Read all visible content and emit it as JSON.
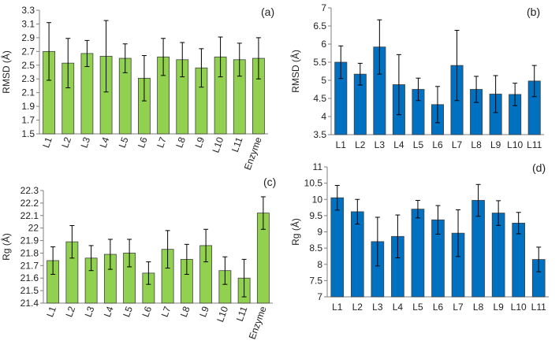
{
  "chart_data": [
    {
      "id": "a",
      "panel_label": "(a)",
      "type": "bar",
      "ylabel": "RMSD (Å)",
      "ylim": [
        1.5,
        3.3
      ],
      "yticks": [
        "1.5",
        "1.7",
        "1.9",
        "2.1",
        "2.3",
        "2.5",
        "2.7",
        "2.9",
        "3.1",
        "3.3"
      ],
      "categories": [
        "L1",
        "L2",
        "L3",
        "L4",
        "L5",
        "L6",
        "L7",
        "L8",
        "L9",
        "L10",
        "L11",
        "Enzyme"
      ],
      "values": [
        2.7,
        2.53,
        2.67,
        2.63,
        2.6,
        2.31,
        2.62,
        2.58,
        2.46,
        2.62,
        2.58,
        2.6
      ],
      "errors": [
        0.42,
        0.36,
        0.19,
        0.52,
        0.21,
        0.33,
        0.27,
        0.25,
        0.28,
        0.29,
        0.24,
        0.3
      ],
      "bar_color": "#92d050",
      "grid": false,
      "tick_rotation": -70
    },
    {
      "id": "b",
      "panel_label": "(b)",
      "type": "bar",
      "ylabel": "RMSD (Å)",
      "ylim": [
        3.5,
        7
      ],
      "yticks": [
        "3.5",
        "4",
        "4.5",
        "5",
        "5.5",
        "6",
        "6.5",
        "7"
      ],
      "categories": [
        "L1",
        "L2",
        "L3",
        "L4",
        "L5",
        "L6",
        "L7",
        "L8",
        "L9",
        "L10",
        "L11"
      ],
      "values": [
        5.5,
        5.17,
        5.92,
        4.88,
        4.75,
        4.33,
        5.41,
        4.75,
        4.62,
        4.61,
        4.98
      ],
      "errors": [
        0.45,
        0.3,
        0.75,
        0.83,
        0.31,
        0.5,
        0.97,
        0.36,
        0.51,
        0.31,
        0.43
      ],
      "bar_color": "#0070c0",
      "grid": false,
      "tick_rotation": 0
    },
    {
      "id": "c",
      "panel_label": "(c)",
      "type": "bar",
      "ylabel": "Rg (Å)",
      "ylim": [
        21.4,
        22.3
      ],
      "yticks": [
        "21.4",
        "21.5",
        "21.6",
        "21.7",
        "21.8",
        "21.9",
        "22",
        "22.1",
        "22.2",
        "22.3"
      ],
      "categories": [
        "L1",
        "L2",
        "L3",
        "L4",
        "L5",
        "L6",
        "L7",
        "L8",
        "L9",
        "L10",
        "L11",
        "Enzyme"
      ],
      "values": [
        21.74,
        21.89,
        21.76,
        21.79,
        21.8,
        21.64,
        21.83,
        21.75,
        21.86,
        21.66,
        21.6,
        22.12
      ],
      "errors": [
        0.11,
        0.13,
        0.1,
        0.12,
        0.11,
        0.09,
        0.15,
        0.12,
        0.13,
        0.11,
        0.15,
        0.13
      ],
      "bar_color": "#92d050",
      "grid": false,
      "tick_rotation": -70
    },
    {
      "id": "d",
      "panel_label": "(d)",
      "type": "bar",
      "ylabel": "Rg (Å)",
      "ylim": [
        7,
        11
      ],
      "yticks": [
        "7",
        "7.5",
        "8",
        "8.5",
        "9",
        "9.5",
        "10",
        "10.5",
        "11"
      ],
      "categories": [
        "L1",
        "L2",
        "L3",
        "L4",
        "L5",
        "L6",
        "L7",
        "L8",
        "L9",
        "L10",
        "L11"
      ],
      "values": [
        10.05,
        9.62,
        8.7,
        8.86,
        9.7,
        9.37,
        8.96,
        9.97,
        9.58,
        9.27,
        8.15
      ],
      "errors": [
        0.38,
        0.38,
        0.75,
        0.66,
        0.27,
        0.44,
        0.72,
        0.49,
        0.38,
        0.33,
        0.38
      ],
      "bar_color": "#0070c0",
      "grid": false,
      "tick_rotation": 0
    }
  ]
}
